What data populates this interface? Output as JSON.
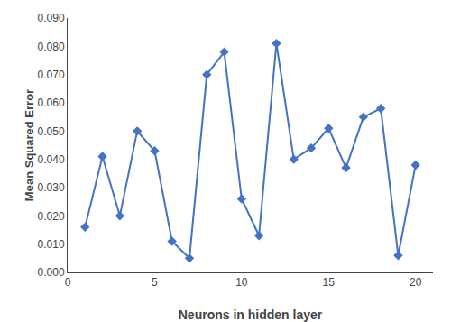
{
  "chart_data": {
    "type": "line",
    "x": [
      1,
      2,
      3,
      4,
      5,
      6,
      7,
      8,
      9,
      10,
      11,
      12,
      13,
      14,
      15,
      16,
      17,
      18,
      19,
      20
    ],
    "values": [
      0.016,
      0.041,
      0.02,
      0.05,
      0.043,
      0.011,
      0.005,
      0.07,
      0.078,
      0.026,
      0.013,
      0.081,
      0.04,
      0.044,
      0.051,
      0.037,
      0.055,
      0.058,
      0.006,
      0.038
    ],
    "color": "#4472C4",
    "marker": "diamond",
    "xlabel": "Neurons in hidden layer",
    "ylabel": "Mean Squared Error",
    "xlim": [
      0,
      21
    ],
    "ylim": [
      0.0,
      0.09
    ],
    "xticks": [
      0,
      5,
      10,
      15,
      20
    ],
    "yticks": [
      {
        "value": 0.0,
        "label": "0.000"
      },
      {
        "value": 0.01,
        "label": "0.010"
      },
      {
        "value": 0.02,
        "label": "0.020"
      },
      {
        "value": 0.03,
        "label": "0.030"
      },
      {
        "value": 0.04,
        "label": "0.040"
      },
      {
        "value": 0.05,
        "label": "0.050"
      },
      {
        "value": 0.06,
        "label": "0.060"
      },
      {
        "value": 0.07,
        "label": "0.070"
      },
      {
        "value": 0.08,
        "label": "0.080"
      },
      {
        "value": 0.09,
        "label": "0.090"
      }
    ],
    "grid": false
  }
}
